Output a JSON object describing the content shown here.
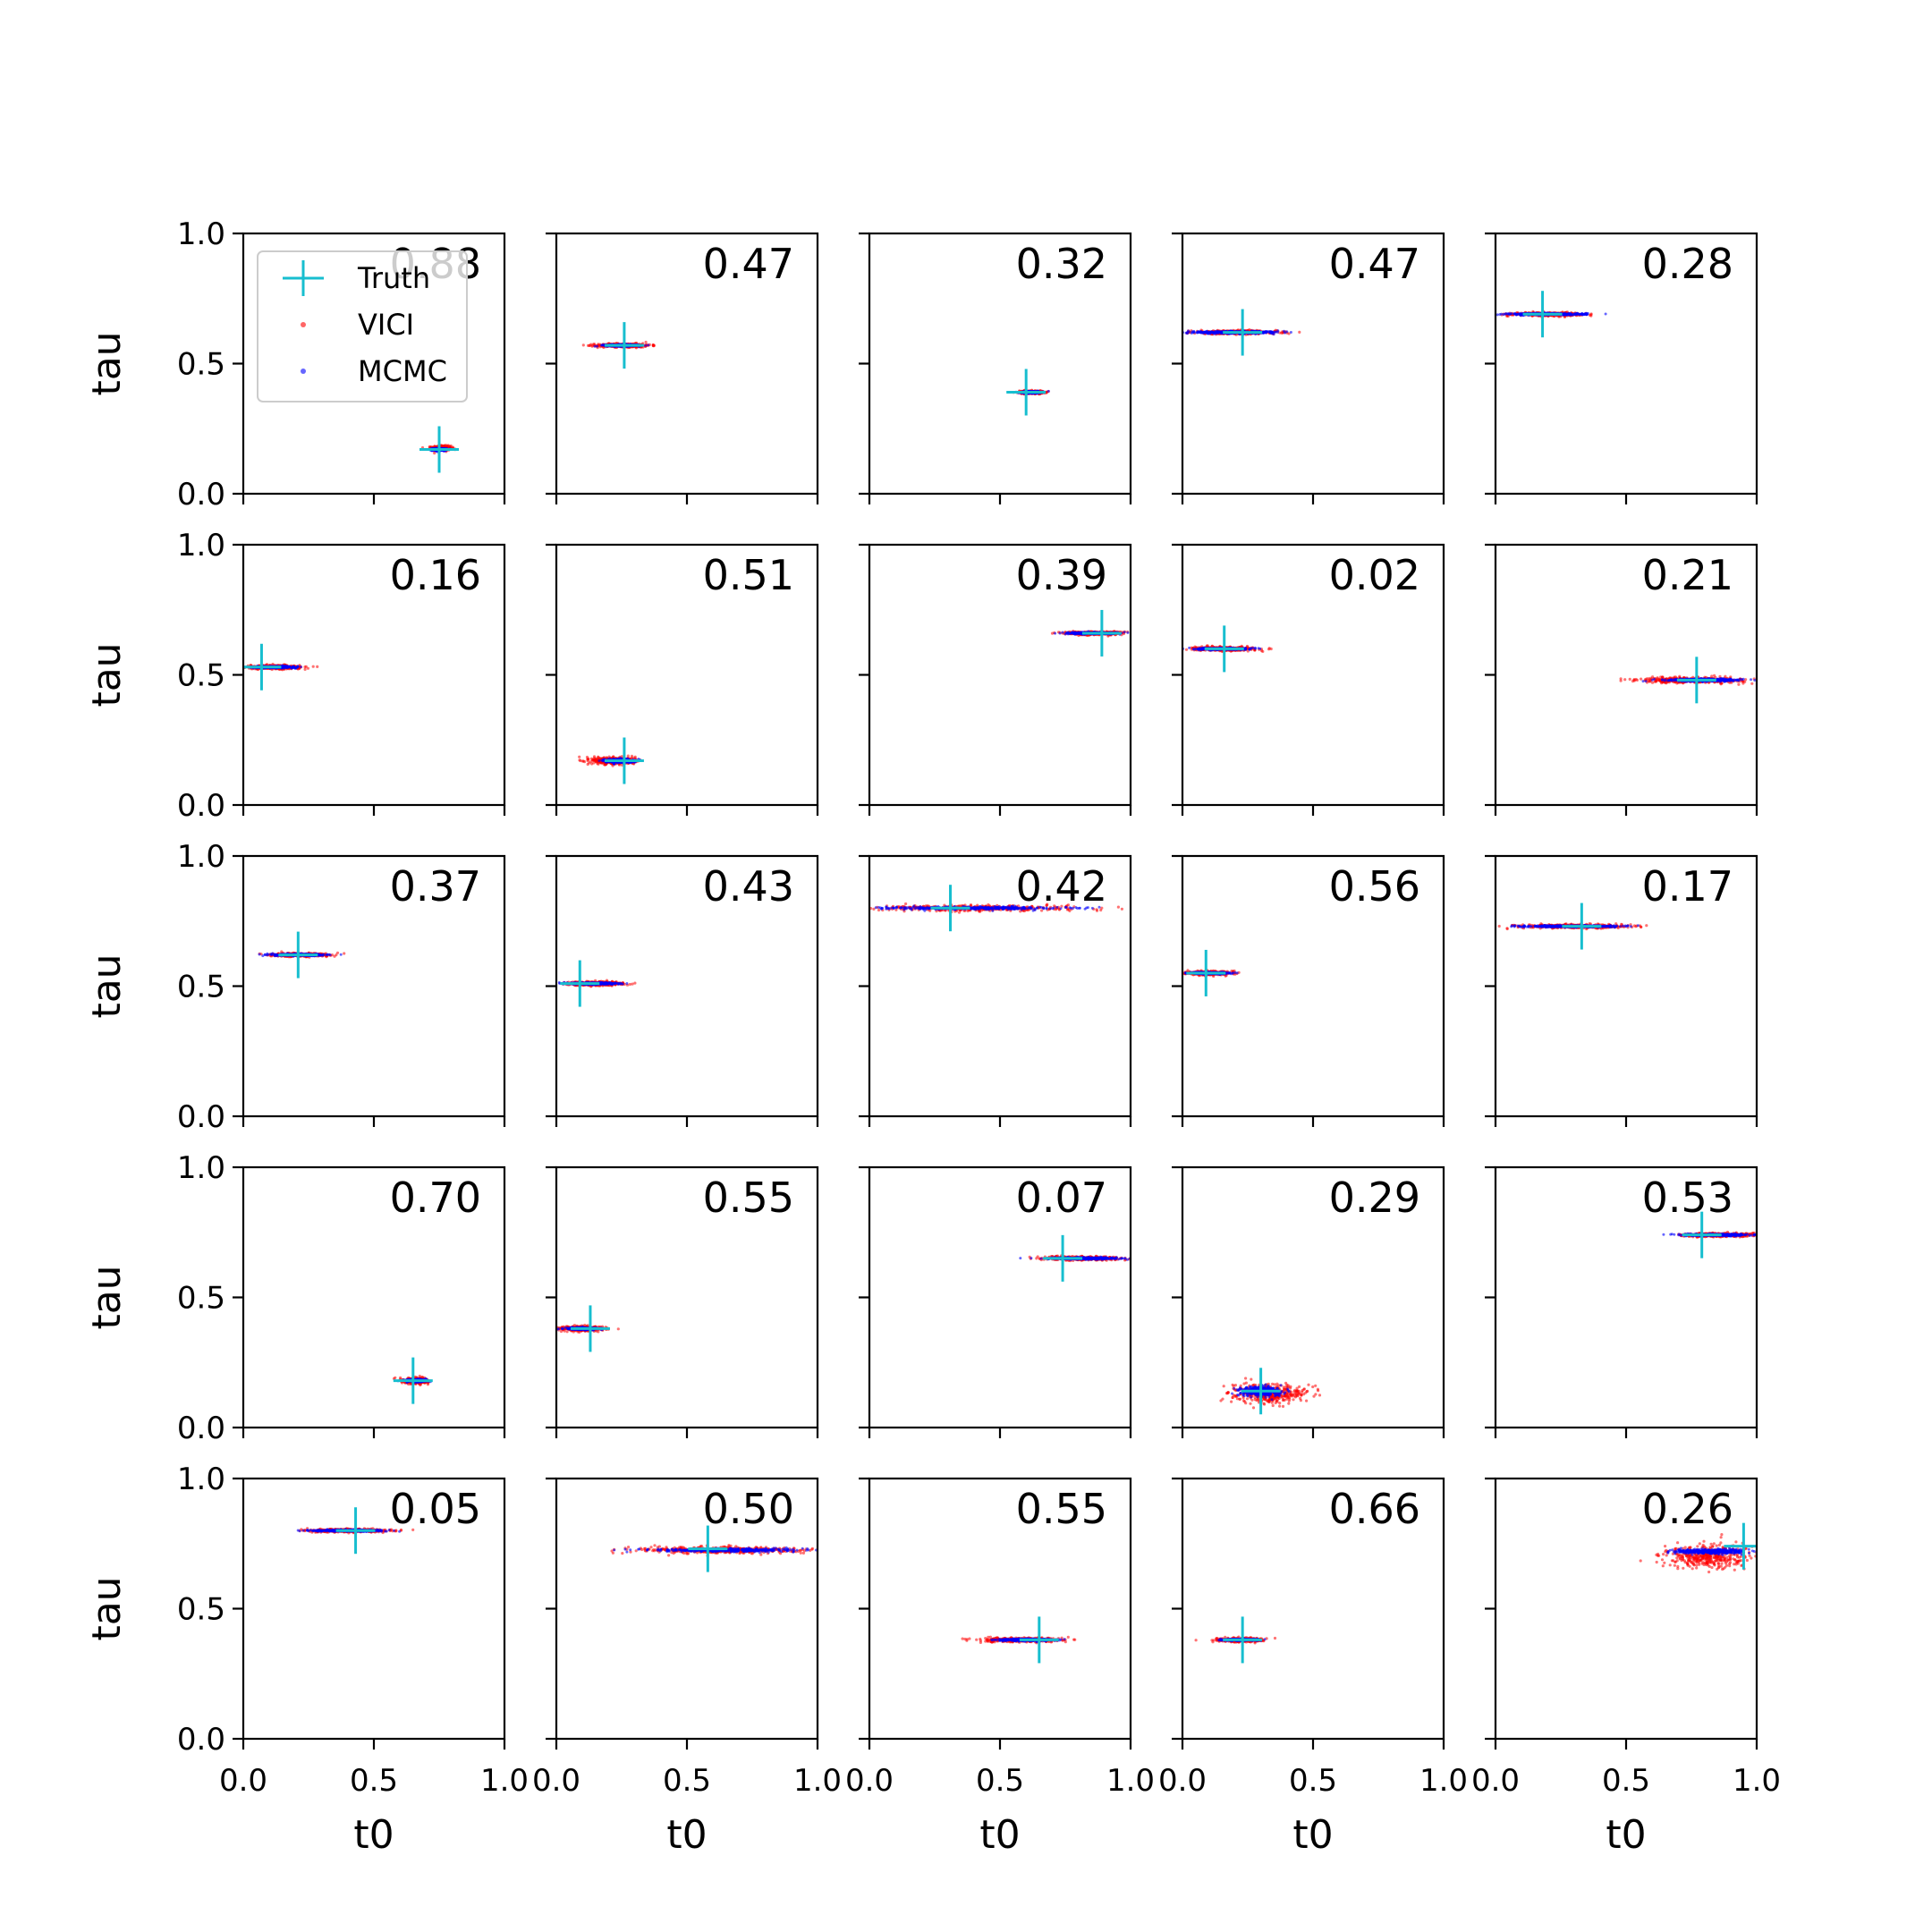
{
  "figure": {
    "legend_location": "upper-left of first panel",
    "colors": {
      "truth": "#17becf",
      "vici": "#ff0000",
      "mcmc": "#0000ff"
    }
  },
  "chart_data": {
    "type": "scatter",
    "layout": {
      "rows": 5,
      "cols": 5,
      "shared_x": true,
      "shared_y": true
    },
    "xlabel": "t0",
    "ylabel": "tau",
    "xlim": [
      0,
      1
    ],
    "ylim": [
      0,
      1
    ],
    "xticks": [
      "0.0",
      "0.5",
      "1.0"
    ],
    "yticks": [
      "0.0",
      "0.5",
      "1.0"
    ],
    "grid": false,
    "legend": [
      {
        "label": "Truth",
        "marker": "plus",
        "color": "#17becf"
      },
      {
        "label": "VICI",
        "marker": "dot",
        "color": "#ff0000"
      },
      {
        "label": "MCMC",
        "marker": "dot",
        "color": "#0000ff"
      }
    ],
    "panels": [
      {
        "label": "0.88",
        "truth": [
          0.75,
          0.17
        ],
        "vici": {
          "cx": 0.76,
          "cy": 0.175,
          "sx": 0.04,
          "sy": 0.01
        },
        "mcmc": {
          "cx": 0.75,
          "cy": 0.17,
          "sx": 0.03,
          "sy": 0.005
        }
      },
      {
        "label": "0.47",
        "truth": [
          0.26,
          0.57
        ],
        "vici": {
          "cx": 0.26,
          "cy": 0.57,
          "sx": 0.11,
          "sy": 0.008
        },
        "mcmc": {
          "cx": 0.25,
          "cy": 0.57,
          "sx": 0.07,
          "sy": 0.004
        }
      },
      {
        "label": "0.32",
        "truth": [
          0.6,
          0.39
        ],
        "vici": {
          "cx": 0.62,
          "cy": 0.39,
          "sx": 0.05,
          "sy": 0.006
        },
        "mcmc": {
          "cx": 0.62,
          "cy": 0.39,
          "sx": 0.04,
          "sy": 0.004
        }
      },
      {
        "label": "0.47",
        "truth": [
          0.23,
          0.62
        ],
        "vici": {
          "cx": 0.2,
          "cy": 0.62,
          "sx": 0.18,
          "sy": 0.008
        },
        "mcmc": {
          "cx": 0.2,
          "cy": 0.62,
          "sx": 0.2,
          "sy": 0.005
        }
      },
      {
        "label": "0.28",
        "truth": [
          0.18,
          0.69
        ],
        "vici": {
          "cx": 0.2,
          "cy": 0.69,
          "sx": 0.14,
          "sy": 0.007
        },
        "mcmc": {
          "cx": 0.2,
          "cy": 0.69,
          "sx": 0.16,
          "sy": 0.004
        }
      },
      {
        "label": "0.16",
        "truth": [
          0.07,
          0.53
        ],
        "vici": {
          "cx": 0.12,
          "cy": 0.53,
          "sx": 0.11,
          "sy": 0.008
        },
        "mcmc": {
          "cx": 0.12,
          "cy": 0.53,
          "sx": 0.09,
          "sy": 0.004
        }
      },
      {
        "label": "0.51",
        "truth": [
          0.26,
          0.17
        ],
        "vici": {
          "cx": 0.22,
          "cy": 0.17,
          "sx": 0.09,
          "sy": 0.015
        },
        "mcmc": {
          "cx": 0.24,
          "cy": 0.17,
          "sx": 0.06,
          "sy": 0.008
        }
      },
      {
        "label": "0.39",
        "truth": [
          0.89,
          0.66
        ],
        "vici": {
          "cx": 0.86,
          "cy": 0.66,
          "sx": 0.12,
          "sy": 0.007
        },
        "mcmc": {
          "cx": 0.86,
          "cy": 0.66,
          "sx": 0.11,
          "sy": 0.004
        }
      },
      {
        "label": "0.02",
        "truth": [
          0.16,
          0.6
        ],
        "vici": {
          "cx": 0.16,
          "cy": 0.6,
          "sx": 0.12,
          "sy": 0.008
        },
        "mcmc": {
          "cx": 0.15,
          "cy": 0.6,
          "sx": 0.1,
          "sy": 0.004
        }
      },
      {
        "label": "0.21",
        "truth": [
          0.77,
          0.48
        ],
        "vici": {
          "cx": 0.75,
          "cy": 0.48,
          "sx": 0.21,
          "sy": 0.012
        },
        "mcmc": {
          "cx": 0.8,
          "cy": 0.48,
          "sx": 0.16,
          "sy": 0.006
        }
      },
      {
        "label": "0.37",
        "truth": [
          0.21,
          0.62
        ],
        "vici": {
          "cx": 0.21,
          "cy": 0.62,
          "sx": 0.12,
          "sy": 0.007
        },
        "mcmc": {
          "cx": 0.22,
          "cy": 0.62,
          "sx": 0.11,
          "sy": 0.004
        }
      },
      {
        "label": "0.43",
        "truth": [
          0.09,
          0.51
        ],
        "vici": {
          "cx": 0.15,
          "cy": 0.51,
          "sx": 0.12,
          "sy": 0.008
        },
        "mcmc": {
          "cx": 0.14,
          "cy": 0.51,
          "sx": 0.1,
          "sy": 0.004
        }
      },
      {
        "label": "0.42",
        "truth": [
          0.31,
          0.8
        ],
        "vici": {
          "cx": 0.42,
          "cy": 0.8,
          "sx": 0.4,
          "sy": 0.012
        },
        "mcmc": {
          "cx": 0.4,
          "cy": 0.8,
          "sx": 0.38,
          "sy": 0.006
        }
      },
      {
        "label": "0.56",
        "truth": [
          0.09,
          0.55
        ],
        "vici": {
          "cx": 0.1,
          "cy": 0.55,
          "sx": 0.09,
          "sy": 0.008
        },
        "mcmc": {
          "cx": 0.1,
          "cy": 0.55,
          "sx": 0.08,
          "sy": 0.004
        }
      },
      {
        "label": "0.17",
        "truth": [
          0.33,
          0.73
        ],
        "vici": {
          "cx": 0.3,
          "cy": 0.73,
          "sx": 0.22,
          "sy": 0.008
        },
        "mcmc": {
          "cx": 0.3,
          "cy": 0.73,
          "sx": 0.2,
          "sy": 0.004
        }
      },
      {
        "label": "0.70",
        "truth": [
          0.65,
          0.18
        ],
        "vici": {
          "cx": 0.66,
          "cy": 0.18,
          "sx": 0.05,
          "sy": 0.012
        },
        "mcmc": {
          "cx": 0.66,
          "cy": 0.18,
          "sx": 0.04,
          "sy": 0.006
        }
      },
      {
        "label": "0.55",
        "truth": [
          0.13,
          0.38
        ],
        "vici": {
          "cx": 0.1,
          "cy": 0.38,
          "sx": 0.09,
          "sy": 0.01
        },
        "mcmc": {
          "cx": 0.1,
          "cy": 0.38,
          "sx": 0.07,
          "sy": 0.005
        }
      },
      {
        "label": "0.07",
        "truth": [
          0.74,
          0.65
        ],
        "vici": {
          "cx": 0.82,
          "cy": 0.65,
          "sx": 0.16,
          "sy": 0.008
        },
        "mcmc": {
          "cx": 0.82,
          "cy": 0.65,
          "sx": 0.15,
          "sy": 0.004
        }
      },
      {
        "label": "0.29",
        "truth": [
          0.3,
          0.14
        ],
        "vici": {
          "cx": 0.33,
          "cy": 0.13,
          "sx": 0.15,
          "sy": 0.04
        },
        "mcmc": {
          "cx": 0.3,
          "cy": 0.14,
          "sx": 0.09,
          "sy": 0.02
        }
      },
      {
        "label": "0.53",
        "truth": [
          0.79,
          0.74
        ],
        "vici": {
          "cx": 0.85,
          "cy": 0.74,
          "sx": 0.15,
          "sy": 0.008
        },
        "mcmc": {
          "cx": 0.85,
          "cy": 0.74,
          "sx": 0.15,
          "sy": 0.004
        }
      },
      {
        "label": "0.05",
        "truth": [
          0.43,
          0.8
        ],
        "vici": {
          "cx": 0.4,
          "cy": 0.8,
          "sx": 0.16,
          "sy": 0.007
        },
        "mcmc": {
          "cx": 0.4,
          "cy": 0.8,
          "sx": 0.15,
          "sy": 0.004
        }
      },
      {
        "label": "0.50",
        "truth": [
          0.58,
          0.73
        ],
        "vici": {
          "cx": 0.62,
          "cy": 0.725,
          "sx": 0.34,
          "sy": 0.015
        },
        "mcmc": {
          "cx": 0.64,
          "cy": 0.725,
          "sx": 0.3,
          "sy": 0.007
        }
      },
      {
        "label": "0.55",
        "truth": [
          0.65,
          0.38
        ],
        "vici": {
          "cx": 0.58,
          "cy": 0.38,
          "sx": 0.16,
          "sy": 0.009
        },
        "mcmc": {
          "cx": 0.6,
          "cy": 0.38,
          "sx": 0.12,
          "sy": 0.005
        }
      },
      {
        "label": "0.66",
        "truth": [
          0.23,
          0.38
        ],
        "vici": {
          "cx": 0.22,
          "cy": 0.38,
          "sx": 0.09,
          "sy": 0.008
        },
        "mcmc": {
          "cx": 0.22,
          "cy": 0.38,
          "sx": 0.07,
          "sy": 0.004
        }
      },
      {
        "label": "0.26",
        "truth": [
          0.95,
          0.74
        ],
        "vici": {
          "cx": 0.82,
          "cy": 0.7,
          "sx": 0.18,
          "sy": 0.05
        },
        "mcmc": {
          "cx": 0.82,
          "cy": 0.72,
          "sx": 0.16,
          "sy": 0.01
        }
      }
    ]
  }
}
